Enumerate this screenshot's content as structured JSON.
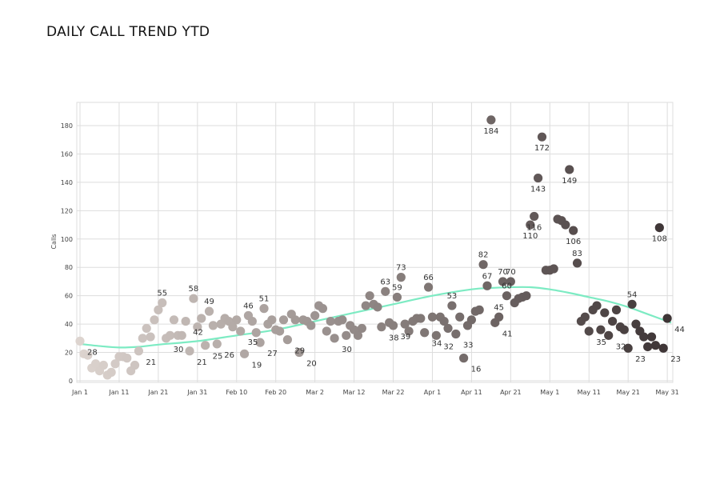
{
  "page": {
    "title": "DAILY CALL TREND YTD"
  },
  "chart_data": {
    "type": "scatter",
    "title": "DAILY CALL TREND YTD",
    "xlabel": "",
    "ylabel": "Calls",
    "ylim": [
      0,
      185
    ],
    "y_ticks": [
      0,
      20,
      40,
      60,
      80,
      100,
      120,
      140,
      160,
      180
    ],
    "x_ticks": [
      "Jan 1",
      "Jan 11",
      "Jan 21",
      "Jan 31",
      "Feb 10",
      "Feb 20",
      "Mar 2",
      "Mar 12",
      "Mar 22",
      "Apr 1",
      "Apr 11",
      "Apr 21",
      "May 1",
      "May 11",
      "May 21",
      "May 31"
    ],
    "xlim_days": [
      0,
      151
    ],
    "grid": true,
    "legend": "none",
    "colors": {
      "early": "#ddd4cf",
      "late": "#3d3435",
      "trend": "#7debc3",
      "grid": "#dddddd"
    },
    "points": [
      {
        "d": 0,
        "v": 28,
        "label": "28"
      },
      {
        "d": 1,
        "v": 19
      },
      {
        "d": 2,
        "v": 18
      },
      {
        "d": 3,
        "v": 9
      },
      {
        "d": 4,
        "v": 12
      },
      {
        "d": 5,
        "v": 7
      },
      {
        "d": 6,
        "v": 11
      },
      {
        "d": 7,
        "v": 4
      },
      {
        "d": 8,
        "v": 6
      },
      {
        "d": 9,
        "v": 12
      },
      {
        "d": 10,
        "v": 17
      },
      {
        "d": 11,
        "v": 17
      },
      {
        "d": 12,
        "v": 16
      },
      {
        "d": 13,
        "v": 7
      },
      {
        "d": 14,
        "v": 11
      },
      {
        "d": 15,
        "v": 21,
        "label": "21"
      },
      {
        "d": 16,
        "v": 30
      },
      {
        "d": 17,
        "v": 37
      },
      {
        "d": 18,
        "v": 31
      },
      {
        "d": 19,
        "v": 43
      },
      {
        "d": 20,
        "v": 50
      },
      {
        "d": 21,
        "v": 55,
        "label": "55"
      },
      {
        "d": 22,
        "v": 30,
        "label": "30"
      },
      {
        "d": 23,
        "v": 32
      },
      {
        "d": 24,
        "v": 43
      },
      {
        "d": 25,
        "v": 32
      },
      {
        "d": 26,
        "v": 32
      },
      {
        "d": 27,
        "v": 42,
        "label": "42"
      },
      {
        "d": 28,
        "v": 21,
        "label": "21"
      },
      {
        "d": 29,
        "v": 58,
        "label": "58"
      },
      {
        "d": 30,
        "v": 38
      },
      {
        "d": 31,
        "v": 44
      },
      {
        "d": 32,
        "v": 25,
        "label": "25"
      },
      {
        "d": 33,
        "v": 49,
        "label": "49"
      },
      {
        "d": 34,
        "v": 39
      },
      {
        "d": 35,
        "v": 26,
        "label": "26"
      },
      {
        "d": 36,
        "v": 40
      },
      {
        "d": 37,
        "v": 44
      },
      {
        "d": 38,
        "v": 42
      },
      {
        "d": 39,
        "v": 38
      },
      {
        "d": 40,
        "v": 43
      },
      {
        "d": 41,
        "v": 35,
        "label": "35"
      },
      {
        "d": 42,
        "v": 19,
        "label": "19"
      },
      {
        "d": 43,
        "v": 46,
        "label": "46"
      },
      {
        "d": 44,
        "v": 42
      },
      {
        "d": 45,
        "v": 34
      },
      {
        "d": 46,
        "v": 27,
        "label": "27"
      },
      {
        "d": 47,
        "v": 51,
        "label": "51"
      },
      {
        "d": 48,
        "v": 40
      },
      {
        "d": 49,
        "v": 43
      },
      {
        "d": 50,
        "v": 36
      },
      {
        "d": 51,
        "v": 35
      },
      {
        "d": 52,
        "v": 43
      },
      {
        "d": 53,
        "v": 29,
        "label": "29"
      },
      {
        "d": 54,
        "v": 47
      },
      {
        "d": 55,
        "v": 43
      },
      {
        "d": 56,
        "v": 20,
        "label": "20"
      },
      {
        "d": 57,
        "v": 43
      },
      {
        "d": 58,
        "v": 42
      },
      {
        "d": 59,
        "v": 39
      },
      {
        "d": 60,
        "v": 46
      },
      {
        "d": 61,
        "v": 53
      },
      {
        "d": 62,
        "v": 51
      },
      {
        "d": 63,
        "v": 35
      },
      {
        "d": 64,
        "v": 42
      },
      {
        "d": 65,
        "v": 30,
        "label": "30"
      },
      {
        "d": 66,
        "v": 42
      },
      {
        "d": 67,
        "v": 43
      },
      {
        "d": 68,
        "v": 32
      },
      {
        "d": 69,
        "v": 39
      },
      {
        "d": 70,
        "v": 36
      },
      {
        "d": 71,
        "v": 32
      },
      {
        "d": 72,
        "v": 37
      },
      {
        "d": 73,
        "v": 53
      },
      {
        "d": 74,
        "v": 60
      },
      {
        "d": 75,
        "v": 54
      },
      {
        "d": 76,
        "v": 52
      },
      {
        "d": 77,
        "v": 38,
        "label": "38"
      },
      {
        "d": 78,
        "v": 63,
        "label": "63"
      },
      {
        "d": 79,
        "v": 41
      },
      {
        "d": 80,
        "v": 39,
        "label": "39"
      },
      {
        "d": 81,
        "v": 59,
        "label": "59"
      },
      {
        "d": 82,
        "v": 73,
        "label": "73"
      },
      {
        "d": 83,
        "v": 40
      },
      {
        "d": 84,
        "v": 35
      },
      {
        "d": 85,
        "v": 42
      },
      {
        "d": 86,
        "v": 44
      },
      {
        "d": 87,
        "v": 44
      },
      {
        "d": 88,
        "v": 34,
        "label": "34"
      },
      {
        "d": 89,
        "v": 66,
        "label": "66"
      },
      {
        "d": 90,
        "v": 45
      },
      {
        "d": 91,
        "v": 32,
        "label": "32"
      },
      {
        "d": 92,
        "v": 45
      },
      {
        "d": 93,
        "v": 42
      },
      {
        "d": 94,
        "v": 37
      },
      {
        "d": 95,
        "v": 53,
        "label": "53"
      },
      {
        "d": 96,
        "v": 33,
        "label": "33"
      },
      {
        "d": 97,
        "v": 45
      },
      {
        "d": 98,
        "v": 16,
        "label": "16"
      },
      {
        "d": 99,
        "v": 39
      },
      {
        "d": 100,
        "v": 43
      },
      {
        "d": 101,
        "v": 49
      },
      {
        "d": 102,
        "v": 50
      },
      {
        "d": 103,
        "v": 82,
        "label": "82"
      },
      {
        "d": 104,
        "v": 67,
        "label": "67"
      },
      {
        "d": 105,
        "v": 184,
        "label": "184"
      },
      {
        "d": 106,
        "v": 41,
        "label": "41"
      },
      {
        "d": 107,
        "v": 45,
        "label": "45"
      },
      {
        "d": 108,
        "v": 70,
        "label": "70"
      },
      {
        "d": 109,
        "v": 60,
        "label": "60"
      },
      {
        "d": 110,
        "v": 70,
        "label": "70"
      },
      {
        "d": 111,
        "v": 55
      },
      {
        "d": 112,
        "v": 58
      },
      {
        "d": 113,
        "v": 59
      },
      {
        "d": 114,
        "v": 60
      },
      {
        "d": 115,
        "v": 110,
        "label": "110"
      },
      {
        "d": 116,
        "v": 116,
        "label": "116"
      },
      {
        "d": 117,
        "v": 143,
        "label": "143"
      },
      {
        "d": 118,
        "v": 172,
        "label": "172"
      },
      {
        "d": 119,
        "v": 78
      },
      {
        "d": 120,
        "v": 78
      },
      {
        "d": 121,
        "v": 79
      },
      {
        "d": 122,
        "v": 114
      },
      {
        "d": 123,
        "v": 113
      },
      {
        "d": 124,
        "v": 110
      },
      {
        "d": 125,
        "v": 149,
        "label": "149"
      },
      {
        "d": 126,
        "v": 106,
        "label": "106"
      },
      {
        "d": 127,
        "v": 83,
        "label": "83"
      },
      {
        "d": 128,
        "v": 42
      },
      {
        "d": 129,
        "v": 45
      },
      {
        "d": 130,
        "v": 35,
        "label": "35"
      },
      {
        "d": 131,
        "v": 50
      },
      {
        "d": 132,
        "v": 53
      },
      {
        "d": 133,
        "v": 36
      },
      {
        "d": 134,
        "v": 48
      },
      {
        "d": 135,
        "v": 32,
        "label": "32"
      },
      {
        "d": 136,
        "v": 42
      },
      {
        "d": 137,
        "v": 50
      },
      {
        "d": 138,
        "v": 38
      },
      {
        "d": 139,
        "v": 36
      },
      {
        "d": 140,
        "v": 23,
        "label": "23"
      },
      {
        "d": 141,
        "v": 54,
        "label": "54"
      },
      {
        "d": 142,
        "v": 40
      },
      {
        "d": 143,
        "v": 35
      },
      {
        "d": 144,
        "v": 31
      },
      {
        "d": 145,
        "v": 24
      },
      {
        "d": 146,
        "v": 31
      },
      {
        "d": 147,
        "v": 25
      },
      {
        "d": 148,
        "v": 108,
        "label": "108"
      },
      {
        "d": 149,
        "v": 23,
        "label": "23"
      },
      {
        "d": 150,
        "v": 44,
        "label": "44"
      }
    ],
    "trend": [
      {
        "d": 0,
        "v": 26
      },
      {
        "d": 5,
        "v": 24.5
      },
      {
        "d": 10,
        "v": 23.5
      },
      {
        "d": 15,
        "v": 24
      },
      {
        "d": 20,
        "v": 25.5
      },
      {
        "d": 30,
        "v": 28
      },
      {
        "d": 40,
        "v": 32
      },
      {
        "d": 50,
        "v": 36
      },
      {
        "d": 60,
        "v": 42
      },
      {
        "d": 70,
        "v": 48
      },
      {
        "d": 80,
        "v": 54
      },
      {
        "d": 90,
        "v": 60
      },
      {
        "d": 100,
        "v": 64.5
      },
      {
        "d": 105,
        "v": 65.5
      },
      {
        "d": 110,
        "v": 66
      },
      {
        "d": 115,
        "v": 66
      },
      {
        "d": 120,
        "v": 64.5
      },
      {
        "d": 125,
        "v": 62
      },
      {
        "d": 130,
        "v": 59
      },
      {
        "d": 135,
        "v": 56
      },
      {
        "d": 140,
        "v": 52
      },
      {
        "d": 145,
        "v": 47
      },
      {
        "d": 151,
        "v": 41
      }
    ]
  }
}
